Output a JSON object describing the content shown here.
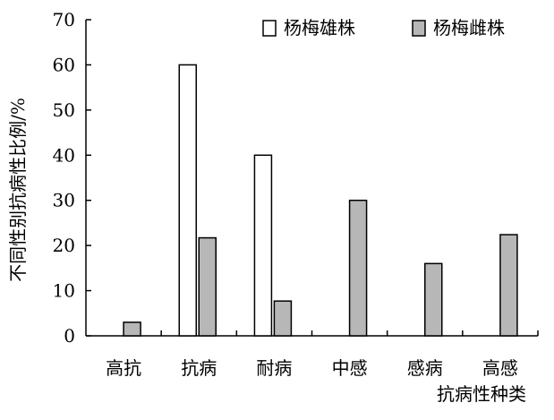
{
  "chart_data": {
    "type": "bar",
    "ylabel": "不同性别抗病性比例/%",
    "xlabel": "抗病性种类",
    "ylim": [
      0,
      70
    ],
    "yticks": [
      0,
      10,
      20,
      30,
      40,
      50,
      60,
      70
    ],
    "categories": [
      "高抗",
      "抗病",
      "耐病",
      "中感",
      "感病",
      "高感"
    ],
    "series": [
      {
        "name": "杨梅雄株",
        "values": [
          0,
          60,
          40,
          0,
          0,
          0
        ],
        "color": "#ffffff"
      },
      {
        "name": "杨梅雌株",
        "values": [
          3,
          21.7,
          7.7,
          30,
          16,
          22.4
        ],
        "color": "#b7b7b7"
      }
    ],
    "legend_position": "top-right",
    "grid": false
  }
}
